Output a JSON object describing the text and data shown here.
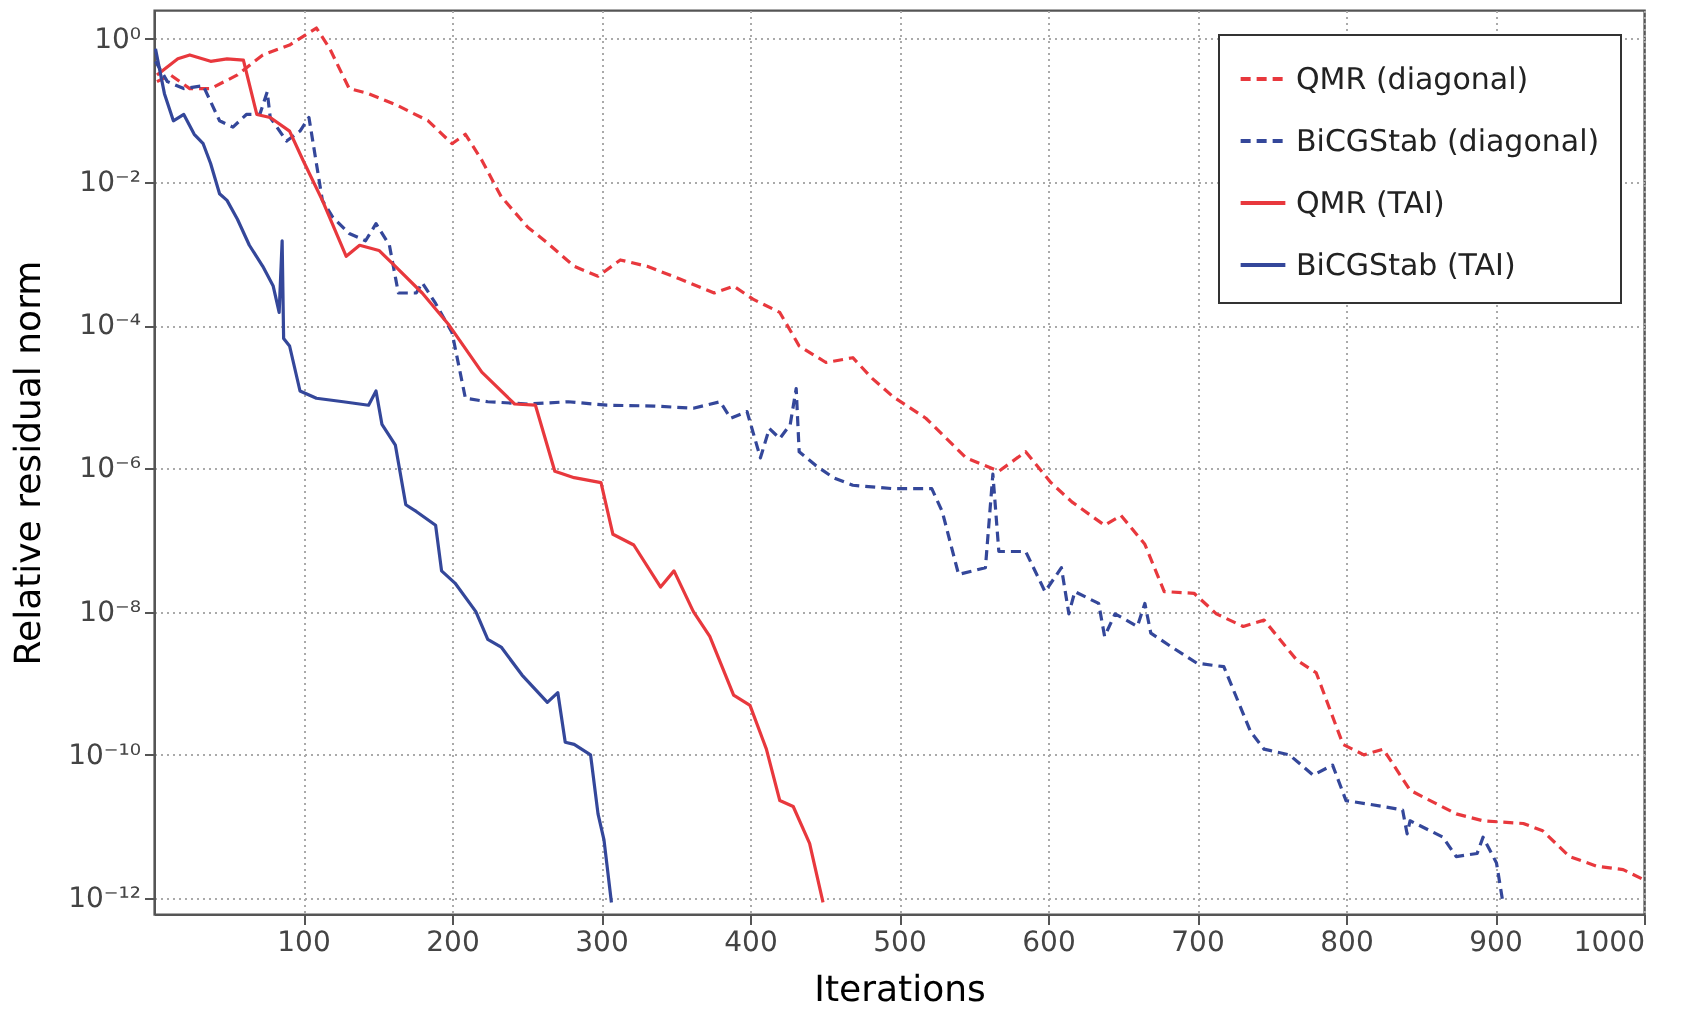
{
  "chart_data": {
    "type": "line",
    "xlabel": "Iterations",
    "ylabel": "Relative residual norm",
    "log": "y",
    "grid": true,
    "legend": "top right",
    "marker": "none",
    "xlim": [
      0,
      1000
    ],
    "xticks": [
      100,
      200,
      300,
      400,
      500,
      600,
      700,
      800,
      900,
      1000
    ],
    "ylim": [
      6e-13,
      2.5
    ],
    "yticks": [
      {
        "value": 1,
        "label": "10⁰"
      },
      {
        "value": 0.01,
        "label": "10⁻²"
      },
      {
        "value": 0.0001,
        "label": "10⁻⁴"
      },
      {
        "value": 1e-06,
        "label": "10⁻⁶"
      },
      {
        "value": 1e-08,
        "label": "10⁻⁸"
      },
      {
        "value": 1e-10,
        "label": "10⁻¹⁰"
      },
      {
        "value": 1e-12,
        "label": "10⁻¹²"
      }
    ],
    "series": [
      {
        "name": "QMR (diagonal)",
        "color": "#e8383d",
        "line_style": "dashed",
        "x": [
          2,
          11,
          24,
          38,
          56,
          73,
          91,
          109,
          118,
          131,
          144,
          162,
          184,
          200,
          209,
          220,
          233,
          251,
          264,
          282,
          298,
          313,
          331,
          353,
          376,
          389,
          402,
          420,
          433,
          451,
          469,
          482,
          496,
          518,
          545,
          567,
          585,
          602,
          616,
          638,
          649,
          665,
          678,
          698,
          713,
          731,
          745,
          767,
          780,
          798,
          812,
          825,
          843,
          874,
          892,
          919,
          932,
          950,
          968,
          986,
          1000
        ],
        "values": [
          0.25,
          0.31,
          0.2,
          0.2,
          0.31,
          0.59,
          0.81,
          1.4,
          0.72,
          0.2,
          0.17,
          0.12,
          0.071,
          0.034,
          0.046,
          0.02,
          0.0062,
          0.0023,
          0.0014,
          0.00066,
          0.00048,
          0.00081,
          0.00066,
          0.00044,
          0.00028,
          0.00035,
          0.00023,
          0.00015,
          5.1e-05,
          3e-05,
          3.5e-05,
          1.8e-05,
          1e-05,
          5e-06,
          1.4e-06,
          9.1e-07,
          1.7e-06,
          6.3e-07,
          3.4e-07,
          1.6e-07,
          2.2e-07,
          8.7e-08,
          1.9e-08,
          1.8e-08,
          9.3e-09,
          6.2e-09,
          7.6e-09,
          2.1e-09,
          1.4e-09,
          1.4e-10,
          1e-10,
          1.2e-10,
          3.2e-11,
          1.5e-11,
          1.2e-11,
          1.1e-11,
          8.7e-12,
          3.8e-12,
          2.8e-12,
          2.5e-12,
          1.8e-12
        ]
      },
      {
        "name": "BiCGStab (diagonal)",
        "color": "#34479a",
        "line_style": "dashed",
        "x": [
          1,
          9,
          20,
          33,
          44,
          53,
          62,
          71,
          76,
          78,
          89,
          98,
          104,
          113,
          120,
          131,
          142,
          149,
          158,
          164,
          176,
          180,
          189,
          200,
          209,
          224,
          251,
          278,
          304,
          336,
          362,
          380,
          387,
          398,
          407,
          413,
          420,
          427,
          431,
          433,
          444,
          456,
          469,
          496,
          522,
          529,
          540,
          558,
          563,
          567,
          585,
          598,
          609,
          614,
          618,
          634,
          638,
          645,
          660,
          665,
          669,
          683,
          700,
          718,
          736,
          745,
          762,
          778,
          791,
          800,
          825,
          838,
          841,
          843,
          865,
          874,
          888,
          892,
          901,
          905
        ],
        "values": [
          0.48,
          0.25,
          0.2,
          0.22,
          0.071,
          0.058,
          0.087,
          0.087,
          0.18,
          0.079,
          0.037,
          0.051,
          0.079,
          0.0055,
          0.0032,
          0.0019,
          0.0015,
          0.0026,
          0.0013,
          0.00028,
          0.00028,
          0.00039,
          0.0002,
          7.9e-05,
          9.5e-06,
          8.5e-06,
          7.9e-06,
          8.5e-06,
          7.6e-06,
          7.4e-06,
          6.9e-06,
          8.5e-06,
          5e-06,
          6.2e-06,
          1.4e-06,
          3.6e-06,
          2.6e-06,
          4.1e-06,
          1.3e-05,
          1.7e-06,
          1.1e-06,
          7.4e-07,
          5.8e-07,
          5.2e-07,
          5.2e-07,
          2.5e-07,
          3.3e-08,
          4.1e-08,
          8.3e-07,
          6.9e-08,
          6.9e-08,
          1.9e-08,
          4.1e-08,
          9.3e-09,
          1.9e-08,
          1.3e-08,
          4.5e-09,
          9.3e-09,
          6.2e-09,
          1.3e-08,
          5e-09,
          3.2e-09,
          1.9e-09,
          1.7e-09,
          2.1e-10,
          1.2e-10,
          1e-10,
          5.2e-11,
          7.2e-11,
          2.3e-11,
          1.9e-11,
          1.7e-11,
          7.9e-12,
          1.2e-11,
          7.1e-12,
          3.8e-12,
          4.2e-12,
          7.1e-12,
          3.1e-12,
          9.5e-13
        ]
      },
      {
        "name": "QMR (TAI)",
        "color": "#e8383d",
        "line_style": "solid",
        "x": [
          2,
          16,
          24,
          38,
          49,
          60,
          69,
          78,
          91,
          100,
          113,
          129,
          138,
          151,
          162,
          180,
          198,
          220,
          242,
          256,
          269,
          282,
          300,
          308,
          322,
          340,
          349,
          362,
          373,
          389,
          400,
          411,
          420,
          429,
          440,
          449
        ],
        "values": [
          0.31,
          0.52,
          0.59,
          0.48,
          0.52,
          0.5,
          0.087,
          0.079,
          0.051,
          0.02,
          0.0055,
          0.00091,
          0.0013,
          0.0011,
          0.00066,
          0.00028,
          0.0001,
          2.2e-05,
          7.9e-06,
          7.6e-06,
          9.1e-07,
          7.4e-07,
          6.3e-07,
          1.2e-07,
          8.5e-08,
          2.2e-08,
          3.7e-08,
          1e-08,
          4.5e-09,
          6.8e-10,
          4.9e-10,
          1.2e-10,
          2.3e-11,
          1.9e-11,
          5.8e-12,
          8.7e-13
        ]
      },
      {
        "name": "BiCGStab (TAI)",
        "color": "#34479a",
        "line_style": "solid",
        "x": [
          1,
          7,
          13,
          20,
          27,
          33,
          38,
          44,
          49,
          56,
          64,
          73,
          80,
          84,
          86,
          87,
          91,
          98,
          109,
          127,
          144,
          149,
          153,
          162,
          169,
          176,
          189,
          193,
          202,
          216,
          224,
          233,
          247,
          264,
          271,
          276,
          282,
          293,
          298,
          302,
          307
        ],
        "values": [
          0.72,
          0.17,
          0.071,
          0.087,
          0.046,
          0.034,
          0.018,
          0.0068,
          0.0055,
          0.003,
          0.0013,
          0.00066,
          0.00035,
          0.00015,
          0.0015,
          6.5e-05,
          5.1e-05,
          1.2e-05,
          9.5e-06,
          8.5e-06,
          7.6e-06,
          1.2e-05,
          4.1e-06,
          2.1e-06,
          3.1e-07,
          2.5e-07,
          1.6e-07,
          3.7e-08,
          2.5e-08,
          1e-08,
          4.1e-09,
          3.2e-09,
          1.3e-09,
          5.4e-10,
          7.4e-10,
          1.5e-10,
          1.4e-10,
          1e-10,
          1.5e-11,
          6.5e-12,
          8.7e-13
        ]
      }
    ]
  }
}
